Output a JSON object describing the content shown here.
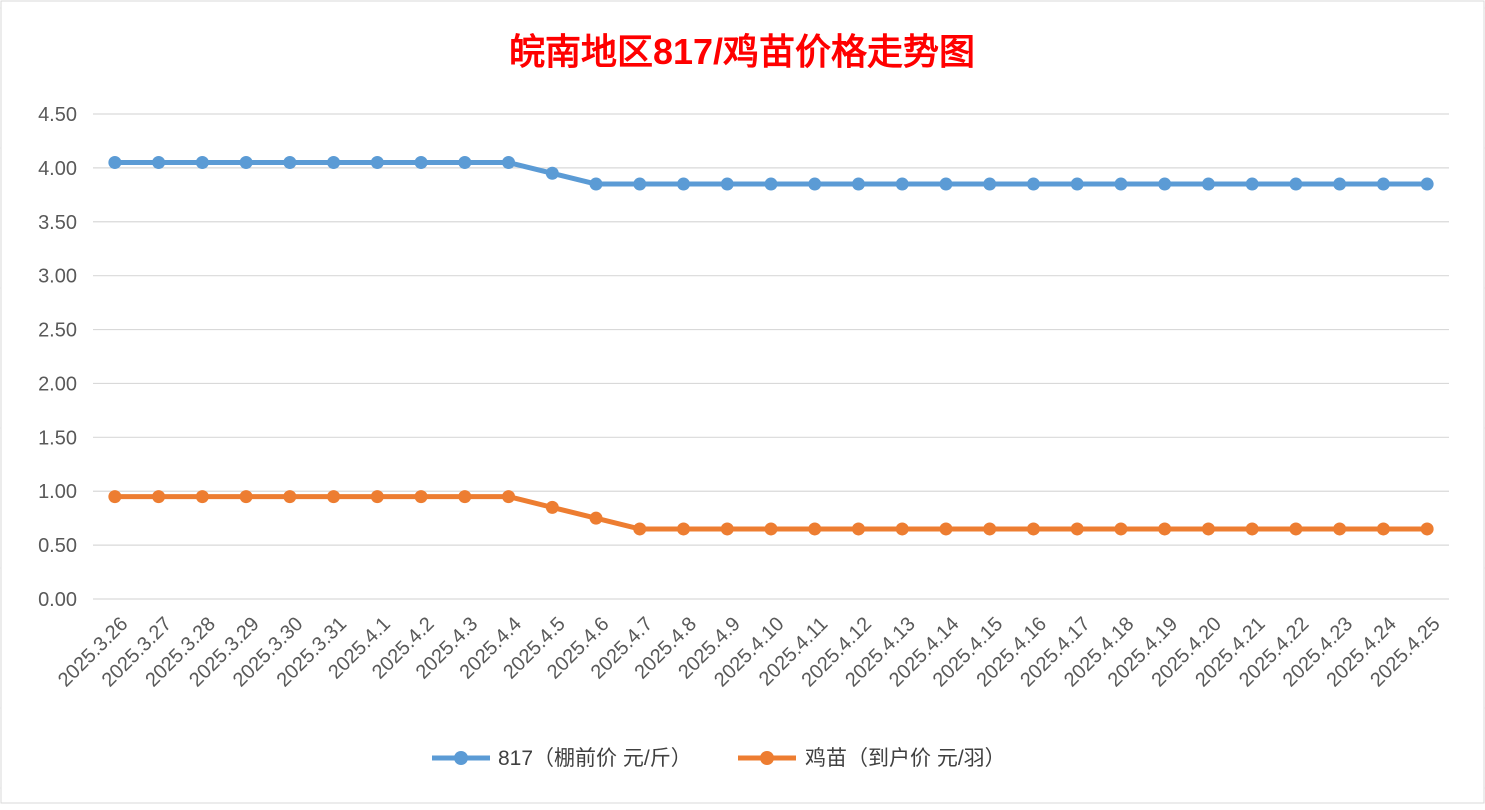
{
  "chart_data": {
    "type": "line",
    "title": "皖南地区817/鸡苗价格走势图",
    "title_color": "#FF0000",
    "categories": [
      "2025.3.26",
      "2025.3.27",
      "2025.3.28",
      "2025.3.29",
      "2025.3.30",
      "2025.3.31",
      "2025.4.1",
      "2025.4.2",
      "2025.4.3",
      "2025.4.4",
      "2025.4.5",
      "2025.4.6",
      "2025.4.7",
      "2025.4.8",
      "2025.4.9",
      "2025.4.10",
      "2025.4.11",
      "2025.4.12",
      "2025.4.13",
      "2025.4.14",
      "2025.4.15",
      "2025.4.16",
      "2025.4.17",
      "2025.4.18",
      "2025.4.19",
      "2025.4.20",
      "2025.4.21",
      "2025.4.22",
      "2025.4.23",
      "2025.4.24",
      "2025.4.25"
    ],
    "series": [
      {
        "name": "817（棚前价 元/斤）",
        "color": "#5B9BD5",
        "values": [
          4.05,
          4.05,
          4.05,
          4.05,
          4.05,
          4.05,
          4.05,
          4.05,
          4.05,
          4.05,
          3.95,
          3.85,
          3.85,
          3.85,
          3.85,
          3.85,
          3.85,
          3.85,
          3.85,
          3.85,
          3.85,
          3.85,
          3.85,
          3.85,
          3.85,
          3.85,
          3.85,
          3.85,
          3.85,
          3.85,
          3.85
        ]
      },
      {
        "name": "鸡苗（到户价 元/羽）",
        "color": "#ED7D31",
        "values": [
          0.95,
          0.95,
          0.95,
          0.95,
          0.95,
          0.95,
          0.95,
          0.95,
          0.95,
          0.95,
          0.85,
          0.75,
          0.65,
          0.65,
          0.65,
          0.65,
          0.65,
          0.65,
          0.65,
          0.65,
          0.65,
          0.65,
          0.65,
          0.65,
          0.65,
          0.65,
          0.65,
          0.65,
          0.65,
          0.65,
          0.65
        ]
      }
    ],
    "yticks": [
      "0.00",
      "0.50",
      "1.00",
      "1.50",
      "2.00",
      "2.50",
      "3.00",
      "3.50",
      "4.00",
      "4.50"
    ],
    "ylim": [
      0,
      4.5
    ],
    "grid": true,
    "legend_position": "bottom"
  }
}
